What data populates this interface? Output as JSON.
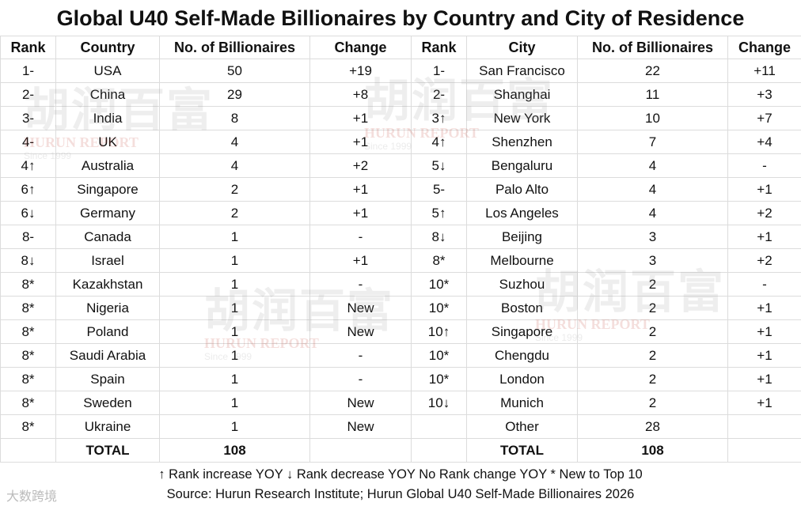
{
  "title": "Global U40 Self-Made Billionaires by Country and City of Residence",
  "headers": {
    "rank": "Rank",
    "country": "Country",
    "count": "No. of Billionaires",
    "change": "Change",
    "rank2": "Rank",
    "city": "City",
    "count2": "No. of Billionaires",
    "change2": "Change"
  },
  "rows": [
    {
      "crank": "1-",
      "country": "USA",
      "ccount": "50",
      "cchange": "+19",
      "yrank": "1-",
      "city": "San Francisco",
      "ycount": "22",
      "ychange": "+11"
    },
    {
      "crank": "2-",
      "country": "China",
      "ccount": "29",
      "cchange": "+8",
      "yrank": "2-",
      "city": "Shanghai",
      "ycount": "11",
      "ychange": "+3"
    },
    {
      "crank": "3-",
      "country": "India",
      "ccount": "8",
      "cchange": "+1",
      "yrank": "3↑",
      "city": "New York",
      "ycount": "10",
      "ychange": "+7"
    },
    {
      "crank": "4-",
      "country": "UK",
      "ccount": "4",
      "cchange": "+1",
      "yrank": "4↑",
      "city": "Shenzhen",
      "ycount": "7",
      "ychange": "+4"
    },
    {
      "crank": "4↑",
      "country": "Australia",
      "ccount": "4",
      "cchange": "+2",
      "yrank": "5↓",
      "city": "Bengaluru",
      "ycount": "4",
      "ychange": "-"
    },
    {
      "crank": "6↑",
      "country": "Singapore",
      "ccount": "2",
      "cchange": "+1",
      "yrank": "5-",
      "city": "Palo Alto",
      "ycount": "4",
      "ychange": "+1"
    },
    {
      "crank": "6↓",
      "country": "Germany",
      "ccount": "2",
      "cchange": "+1",
      "yrank": "5↑",
      "city": "Los Angeles",
      "ycount": "4",
      "ychange": "+2"
    },
    {
      "crank": "8-",
      "country": "Canada",
      "ccount": "1",
      "cchange": "-",
      "yrank": "8↓",
      "city": "Beijing",
      "ycount": "3",
      "ychange": "+1"
    },
    {
      "crank": "8↓",
      "country": "Israel",
      "ccount": "1",
      "cchange": "+1",
      "yrank": "8*",
      "city": "Melbourne",
      "ycount": "3",
      "ychange": "+2"
    },
    {
      "crank": "8*",
      "country": "Kazakhstan",
      "ccount": "1",
      "cchange": "-",
      "yrank": "10*",
      "city": "Suzhou",
      "ycount": "2",
      "ychange": "-"
    },
    {
      "crank": "8*",
      "country": "Nigeria",
      "ccount": "1",
      "cchange": "New",
      "yrank": "10*",
      "city": "Boston",
      "ycount": "2",
      "ychange": "+1"
    },
    {
      "crank": "8*",
      "country": "Poland",
      "ccount": "1",
      "cchange": "New",
      "yrank": "10↑",
      "city": "Singapore",
      "ycount": "2",
      "ychange": "+1"
    },
    {
      "crank": "8*",
      "country": "Saudi Arabia",
      "ccount": "1",
      "cchange": "-",
      "yrank": "10*",
      "city": "Chengdu",
      "ycount": "2",
      "ychange": "+1"
    },
    {
      "crank": "8*",
      "country": "Spain",
      "ccount": "1",
      "cchange": "-",
      "yrank": "10*",
      "city": "London",
      "ycount": "2",
      "ychange": "+1"
    },
    {
      "crank": "8*",
      "country": "Sweden",
      "ccount": "1",
      "cchange": "New",
      "yrank": "10↓",
      "city": "Munich",
      "ycount": "2",
      "ychange": "+1"
    },
    {
      "crank": "8*",
      "country": "Ukraine",
      "ccount": "1",
      "cchange": "New",
      "yrank": "",
      "city": "Other",
      "ycount": "28",
      "ychange": ""
    }
  ],
  "totals": {
    "country_label": "TOTAL",
    "country_count": "108",
    "city_label": "TOTAL",
    "city_count": "108"
  },
  "legend": "↑ Rank increase YOY ↓ Rank decrease YOY  No Rank change YOY * New to Top 10",
  "source": "Source: Hurun Research Institute; Hurun Global U40 Self-Made Billionaires 2026",
  "watermark": {
    "cn": "胡润百富",
    "en": "HURUN REPORT",
    "since": "Since 1999"
  },
  "brand": "大数跨境"
}
